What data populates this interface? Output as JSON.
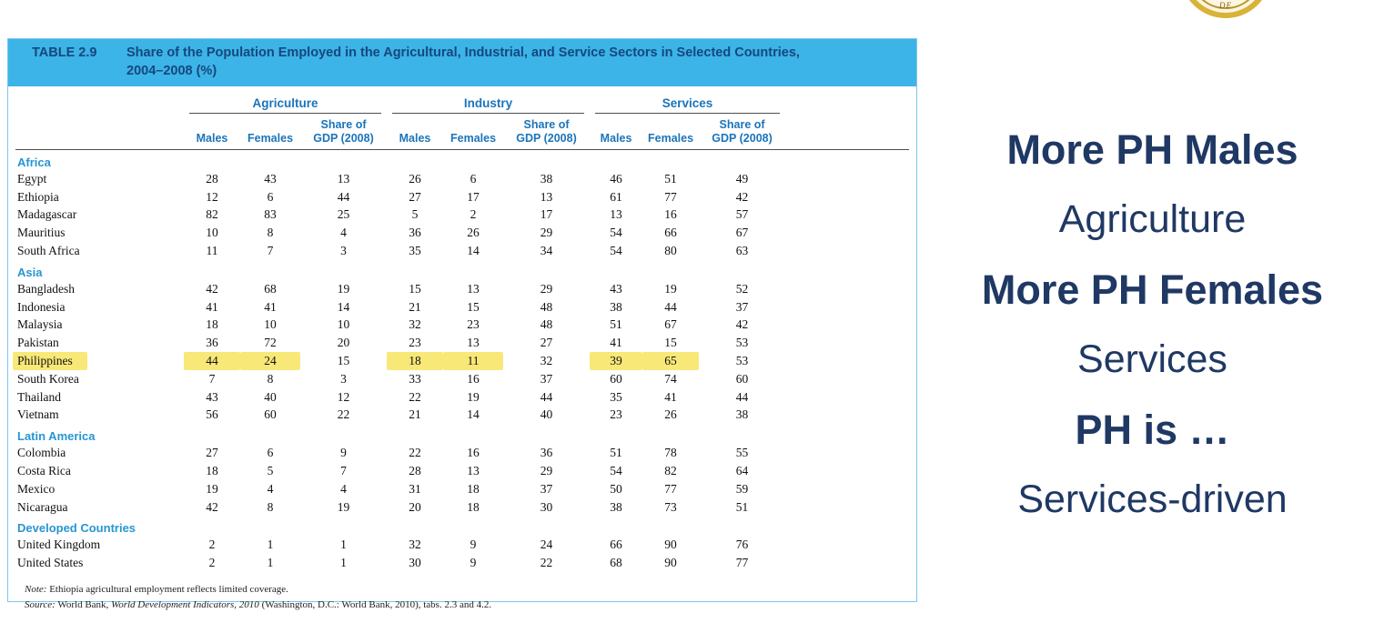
{
  "table": {
    "label": "TABLE 2.9",
    "title": "Share of the Population Employed in the Agricultural, Industrial, and Service Sectors in Selected Countries, 2004–2008 (%)",
    "groups": [
      "Agriculture",
      "Industry",
      "Services"
    ],
    "sub": {
      "males": "Males",
      "females": "Females",
      "share": "Share of\nGDP (2008)"
    },
    "regions": [
      {
        "name": "Africa",
        "rows": [
          {
            "country": "Egypt",
            "values": [
              "28",
              "43",
              "13",
              "26",
              "6",
              "38",
              "46",
              "51",
              "49"
            ]
          },
          {
            "country": "Ethiopia",
            "values": [
              "12",
              "6",
              "44",
              "27",
              "17",
              "13",
              "61",
              "77",
              "42"
            ]
          },
          {
            "country": "Madagascar",
            "values": [
              "82",
              "83",
              "25",
              "5",
              "2",
              "17",
              "13",
              "16",
              "57"
            ]
          },
          {
            "country": "Mauritius",
            "values": [
              "10",
              "8",
              "4",
              "36",
              "26",
              "29",
              "54",
              "66",
              "67"
            ]
          },
          {
            "country": "South Africa",
            "values": [
              "11",
              "7",
              "3",
              "35",
              "14",
              "34",
              "54",
              "80",
              "63"
            ]
          }
        ]
      },
      {
        "name": "Asia",
        "rows": [
          {
            "country": "Bangladesh",
            "values": [
              "42",
              "68",
              "19",
              "15",
              "13",
              "29",
              "43",
              "19",
              "52"
            ]
          },
          {
            "country": "Indonesia",
            "values": [
              "41",
              "41",
              "14",
              "21",
              "15",
              "48",
              "38",
              "44",
              "37"
            ]
          },
          {
            "country": "Malaysia",
            "values": [
              "18",
              "10",
              "10",
              "32",
              "23",
              "48",
              "51",
              "67",
              "42"
            ]
          },
          {
            "country": "Pakistan",
            "values": [
              "36",
              "72",
              "20",
              "23",
              "13",
              "27",
              "41",
              "15",
              "53"
            ]
          },
          {
            "country": "Philippines",
            "values": [
              "44",
              "24",
              "15",
              "18",
              "11",
              "32",
              "39",
              "65",
              "53"
            ],
            "highlight_country": true,
            "highlight_cells": [
              0,
              1,
              3,
              4,
              6,
              7
            ]
          },
          {
            "country": "South Korea",
            "values": [
              "7",
              "8",
              "3",
              "33",
              "16",
              "37",
              "60",
              "74",
              "60"
            ]
          },
          {
            "country": "Thailand",
            "values": [
              "43",
              "40",
              "12",
              "22",
              "19",
              "44",
              "35",
              "41",
              "44"
            ]
          },
          {
            "country": "Vietnam",
            "values": [
              "56",
              "60",
              "22",
              "21",
              "14",
              "40",
              "23",
              "26",
              "38"
            ]
          }
        ]
      },
      {
        "name": "Latin America",
        "rows": [
          {
            "country": "Colombia",
            "values": [
              "27",
              "6",
              "9",
              "22",
              "16",
              "36",
              "51",
              "78",
              "55"
            ]
          },
          {
            "country": "Costa Rica",
            "values": [
              "18",
              "5",
              "7",
              "28",
              "13",
              "29",
              "54",
              "82",
              "64"
            ]
          },
          {
            "country": "Mexico",
            "values": [
              "19",
              "4",
              "4",
              "31",
              "18",
              "37",
              "50",
              "77",
              "59"
            ]
          },
          {
            "country": "Nicaragua",
            "values": [
              "42",
              "8",
              "19",
              "20",
              "18",
              "30",
              "38",
              "73",
              "51"
            ]
          }
        ]
      },
      {
        "name": "Developed Countries",
        "rows": [
          {
            "country": "United Kingdom",
            "values": [
              "2",
              "1",
              "1",
              "32",
              "9",
              "24",
              "66",
              "90",
              "76"
            ]
          },
          {
            "country": "United States",
            "values": [
              "2",
              "1",
              "1",
              "30",
              "9",
              "22",
              "68",
              "90",
              "77"
            ]
          }
        ]
      }
    ],
    "note_label": "Note:",
    "note_text": " Ethiopia agricultural employment reflects limited coverage.",
    "source_label": "Source:",
    "source_pre": " World Bank, ",
    "source_italic": "World Development Indicators, 2010",
    "source_post": " (Washington, D.C.: World Bank, 2010), tabs. 2.3 and 4.2."
  },
  "annotations": [
    {
      "text": "More PH Males",
      "bold": true
    },
    {
      "text": "Agriculture",
      "bold": false
    },
    {
      "text": "More PH Females",
      "bold": true
    },
    {
      "text": "Services",
      "bold": false
    },
    {
      "text": "PH is …",
      "bold": true
    },
    {
      "text": "Services-driven",
      "bold": false
    }
  ],
  "logo": {
    "letters": "DE"
  },
  "colors": {
    "band_bg": "#3cb4e7",
    "band_text": "#16477e",
    "header_blue": "#1b74ba",
    "region_blue": "#2795d2",
    "highlight_yellow": "#f8e878",
    "annotation_navy": "#1f3864",
    "seal_gold": "#d9b23a"
  }
}
